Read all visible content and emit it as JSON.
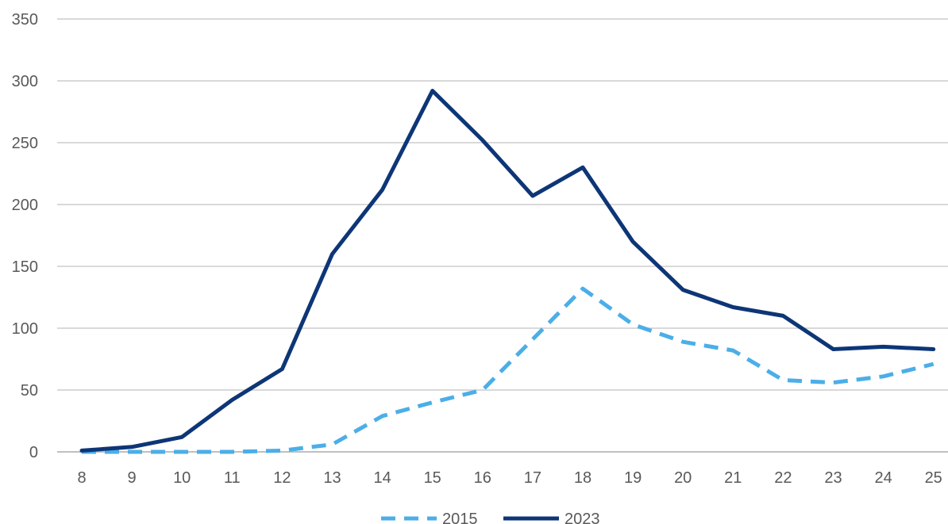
{
  "chart_data": {
    "type": "line",
    "title": "",
    "xlabel": "",
    "ylabel": "",
    "x": [
      8,
      9,
      10,
      11,
      12,
      13,
      14,
      15,
      16,
      17,
      18,
      19,
      20,
      21,
      22,
      23,
      24,
      25
    ],
    "ylim": [
      0,
      350
    ],
    "yticks": [
      0,
      50,
      100,
      150,
      200,
      250,
      300,
      350
    ],
    "grid": "horizontal",
    "legend_position": "bottom",
    "series": [
      {
        "name": "2015",
        "style": "dashed",
        "color": "#4BAEE8",
        "values": [
          0,
          0,
          0,
          0,
          1,
          6,
          29,
          40,
          50,
          91,
          132,
          103,
          89,
          82,
          58,
          56,
          61,
          71
        ]
      },
      {
        "name": "2023",
        "style": "solid",
        "color": "#0D3677",
        "values": [
          1,
          4,
          12,
          42,
          67,
          160,
          212,
          292,
          252,
          207,
          230,
          170,
          131,
          117,
          110,
          83,
          85,
          83
        ]
      }
    ]
  }
}
